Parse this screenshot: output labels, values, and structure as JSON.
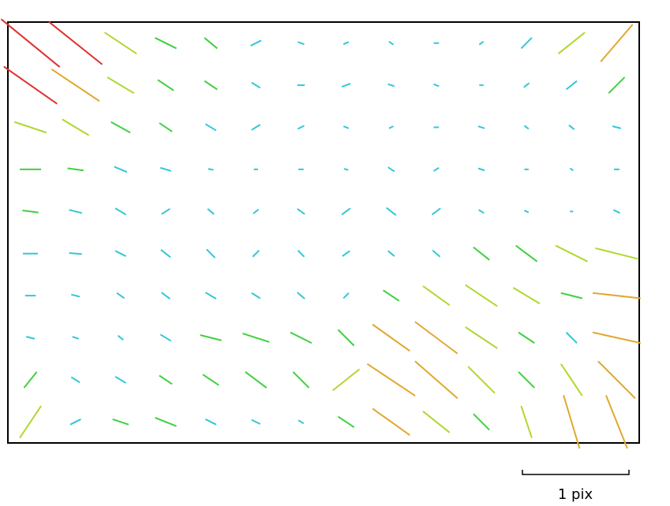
{
  "chart_data": {
    "type": "quiver",
    "colormap": [
      "#30c8d8",
      "#40d040",
      "#b0d830",
      "#e0a830",
      "#e03030"
    ],
    "scale": {
      "value": 1,
      "label": "1 pix"
    },
    "u": [
      [
        0.55,
        0.5,
        0.3,
        0.2,
        0.12,
        0.1,
        0.06,
        0.05,
        0.04,
        0.05,
        0.04,
        0.1,
        0.25,
        0.3
      ],
      [
        0.5,
        0.45,
        0.25,
        0.15,
        0.12,
        0.08,
        0.07,
        0.08,
        0.06,
        0.05,
        0.04,
        0.05,
        0.1,
        0.15
      ],
      [
        0.3,
        0.25,
        0.18,
        0.12,
        0.1,
        0.08,
        0.06,
        0.05,
        0.04,
        0.05,
        0.06,
        0.04,
        0.05,
        0.08
      ],
      [
        0.2,
        0.15,
        0.12,
        0.1,
        0.05,
        0.04,
        0.05,
        0.04,
        0.06,
        0.05,
        0.06,
        0.04,
        0.03,
        0.05
      ],
      [
        0.15,
        0.12,
        0.1,
        0.08,
        0.06,
        0.05,
        0.07,
        0.08,
        0.09,
        0.08,
        0.05,
        0.04,
        0.03,
        0.06
      ],
      [
        0.14,
        0.12,
        0.1,
        0.09,
        0.08,
        0.06,
        0.06,
        0.07,
        0.06,
        0.07,
        0.15,
        0.2,
        0.3,
        0.4
      ],
      [
        0.1,
        0.08,
        0.07,
        0.08,
        0.1,
        0.08,
        0.07,
        0.05,
        0.15,
        0.25,
        0.3,
        0.25,
        0.2,
        0.45
      ],
      [
        0.08,
        0.06,
        0.05,
        0.1,
        0.2,
        0.25,
        0.2,
        0.15,
        0.35,
        0.4,
        0.3,
        0.15,
        0.1,
        0.45
      ],
      [
        0.12,
        0.08,
        0.1,
        0.12,
        0.15,
        0.2,
        0.15,
        0.25,
        0.45,
        0.4,
        0.25,
        0.15,
        0.2,
        0.35
      ],
      [
        0.2,
        0.1,
        0.15,
        0.2,
        0.1,
        0.08,
        0.05,
        0.15,
        0.35,
        0.25,
        0.15,
        0.1,
        0.15,
        0.2
      ]
    ],
    "v": [
      [
        0.45,
        0.4,
        0.2,
        0.1,
        0.1,
        -0.05,
        0.02,
        -0.02,
        0.03,
        0,
        -0.03,
        -0.1,
        -0.2,
        -0.35
      ],
      [
        0.35,
        0.3,
        0.15,
        0.1,
        0.08,
        0.05,
        0,
        -0.03,
        0.02,
        0.02,
        0,
        -0.04,
        -0.08,
        -0.15
      ],
      [
        0.1,
        0.15,
        0.1,
        0.08,
        0.06,
        -0.05,
        -0.03,
        0.02,
        -0.02,
        0,
        0.02,
        0.03,
        0.04,
        0.02
      ],
      [
        0,
        0.02,
        0.05,
        0.03,
        0.01,
        0,
        0,
        0.01,
        0.04,
        -0.03,
        0.02,
        0,
        0.02,
        0
      ],
      [
        0.02,
        0.03,
        0.06,
        -0.05,
        0.05,
        -0.04,
        0.05,
        -0.06,
        0.07,
        -0.06,
        0.03,
        0.02,
        0,
        0.03
      ],
      [
        0,
        0.01,
        0.05,
        0.07,
        0.08,
        -0.06,
        0.06,
        -0.05,
        0.05,
        0.06,
        0.12,
        0.15,
        0.15,
        0.1
      ],
      [
        0,
        0.02,
        0.05,
        0.06,
        0.06,
        0.05,
        0.06,
        -0.05,
        0.1,
        0.18,
        0.2,
        0.15,
        0.05,
        0.05
      ],
      [
        0.02,
        0.02,
        0.04,
        0.06,
        0.05,
        0.08,
        0.1,
        0.15,
        0.25,
        0.3,
        0.2,
        0.1,
        0.1,
        0.1
      ],
      [
        -0.15,
        0.05,
        0.06,
        0.08,
        0.1,
        0.15,
        0.15,
        -0.2,
        0.3,
        0.35,
        0.25,
        0.15,
        0.3,
        0.35
      ],
      [
        -0.3,
        -0.05,
        0.05,
        0.08,
        0.05,
        0.04,
        0.03,
        0.1,
        0.25,
        0.2,
        0.15,
        0.3,
        0.5,
        0.5
      ]
    ]
  }
}
